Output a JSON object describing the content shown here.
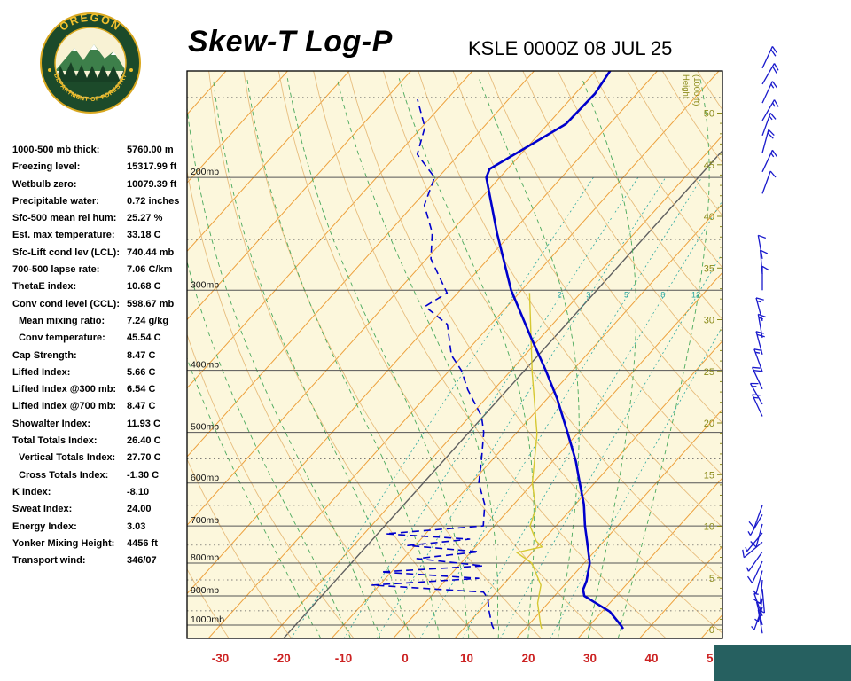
{
  "header": {
    "title": "Skew-T Log-P",
    "station_time": "KSLE 0000Z 08 JUL 25",
    "logo_top": "OREGON",
    "logo_bottom": "DEPARTMENT OF FORESTRY"
  },
  "indices": [
    {
      "label": "1000-500 mb thick:",
      "value": "5760.00 m",
      "indent": false
    },
    {
      "label": "Freezing level:",
      "value": "15317.99 ft",
      "indent": false
    },
    {
      "label": "Wetbulb zero:",
      "value": "10079.39 ft",
      "indent": false
    },
    {
      "label": "Precipitable water:",
      "value": "0.72 inches",
      "indent": false
    },
    {
      "label": "Sfc-500 mean rel hum:",
      "value": "25.27 %",
      "indent": false
    },
    {
      "label": "Est. max temperature:",
      "value": "33.18 C",
      "indent": false
    },
    {
      "label": "Sfc-Lift cond lev (LCL):",
      "value": "740.44 mb",
      "indent": false
    },
    {
      "label": "700-500 lapse rate:",
      "value": "7.06 C/km",
      "indent": false
    },
    {
      "label": "ThetaE index:",
      "value": "10.68 C",
      "indent": false
    },
    {
      "label": "Conv cond level (CCL):",
      "value": "598.67 mb",
      "indent": false
    },
    {
      "label": "Mean mixing ratio:",
      "value": "7.24 g/kg",
      "indent": true
    },
    {
      "label": "Conv temperature:",
      "value": "45.54 C",
      "indent": true
    },
    {
      "label": "Cap Strength:",
      "value": "8.47 C",
      "indent": false
    },
    {
      "label": "Lifted Index:",
      "value": "5.66 C",
      "indent": false
    },
    {
      "label": "Lifted Index @300 mb:",
      "value": "6.54 C",
      "indent": false
    },
    {
      "label": "Lifted Index @700 mb:",
      "value": "8.47 C",
      "indent": false
    },
    {
      "label": "Showalter Index:",
      "value": "11.93 C",
      "indent": false
    },
    {
      "label": "Total Totals Index:",
      "value": "26.40 C",
      "indent": false
    },
    {
      "label": "Vertical Totals Index:",
      "value": "27.70 C",
      "indent": true
    },
    {
      "label": "Cross Totals Index:",
      "value": "-1.30 C",
      "indent": true
    },
    {
      "label": "K Index:",
      "value": "-8.10",
      "indent": false
    },
    {
      "label": "Sweat Index:",
      "value": "24.00",
      "indent": false
    },
    {
      "label": "Energy Index:",
      "value": "3.03",
      "indent": false
    },
    {
      "label": "Yonker Mixing Height:",
      "value": "4456 ft",
      "indent": false
    },
    {
      "label": "Transport wind:",
      "value": "346/07",
      "indent": false
    }
  ],
  "chart_data": {
    "type": "skewt-log-p",
    "title": "Skew-T Log-P",
    "station": "KSLE 0000Z 08 JUL 25",
    "pressure_major_mb": [
      200,
      300,
      400,
      500,
      600,
      700,
      800,
      900,
      1000
    ],
    "pressure_minor_mb": [
      150,
      250,
      350,
      450,
      550,
      650,
      750,
      850,
      950
    ],
    "pressure_label_suffix": "mb",
    "temp_ticks_c": [
      -30,
      -20,
      -10,
      0,
      10,
      20,
      30,
      40,
      50
    ],
    "height_ticks_kft": [
      0,
      5,
      10,
      15,
      20,
      25,
      30,
      35,
      40,
      45,
      50
    ],
    "height_axis_label_1": "Height",
    "height_axis_label_2": "(1000 ft)",
    "isotherms_c": {
      "min": -120,
      "max": 50,
      "step": 10
    },
    "reference_isotherm_c": -17.8,
    "dry_adiabats_c": {
      "min": -30,
      "max": 200,
      "step": 10
    },
    "moist_adiabats_c": [
      -15,
      -10,
      -5,
      0,
      5,
      10,
      15,
      20,
      25,
      30,
      35
    ],
    "mixing_ratio_gkg": [
      1,
      2,
      3,
      5,
      8,
      12,
      20
    ],
    "temperature_profile_p_c": [
      [
        1013,
        35.9
      ],
      [
        1000,
        35.0
      ],
      [
        953,
        31.3
      ],
      [
        917,
        26.9
      ],
      [
        900,
        24.8
      ],
      [
        880,
        23.7
      ],
      [
        853,
        23.0
      ],
      [
        800,
        20.9
      ],
      [
        751,
        18.0
      ],
      [
        700,
        14.7
      ],
      [
        648,
        11.4
      ],
      [
        600,
        7.6
      ],
      [
        554,
        3.7
      ],
      [
        500,
        -1.8
      ],
      [
        443,
        -8.4
      ],
      [
        400,
        -14.4
      ],
      [
        356,
        -21.5
      ],
      [
        300,
        -31.7
      ],
      [
        244,
        -42.4
      ],
      [
        200,
        -52.2
      ],
      [
        194,
        -52.9
      ],
      [
        165,
        -47.1
      ],
      [
        148,
        -46.8
      ],
      [
        136,
        -47.7
      ]
    ],
    "dewpoint_profile_p_c": [
      [
        1013,
        14.9
      ],
      [
        1000,
        14.1
      ],
      [
        953,
        11.7
      ],
      [
        908,
        9.5
      ],
      [
        888,
        7.9
      ],
      [
        866,
        -11.2
      ],
      [
        845,
        5.1
      ],
      [
        826,
        -11.7
      ],
      [
        808,
        4.0
      ],
      [
        787,
        -7.8
      ],
      [
        768,
        1.2
      ],
      [
        751,
        -11.2
      ],
      [
        734,
        -2.1
      ],
      [
        720,
        -16.5
      ],
      [
        700,
        -1.8
      ],
      [
        648,
        -4.7
      ],
      [
        600,
        -8.8
      ],
      [
        554,
        -11.6
      ],
      [
        500,
        -15.4
      ],
      [
        472,
        -18.1
      ],
      [
        429,
        -24.2
      ],
      [
        400,
        -28.1
      ],
      [
        379,
        -31.9
      ],
      [
        339,
        -37.1
      ],
      [
        318,
        -43.3
      ],
      [
        303,
        -41.7
      ],
      [
        268,
        -49.3
      ],
      [
        244,
        -52.9
      ],
      [
        221,
        -58.2
      ],
      [
        200,
        -60.6
      ],
      [
        184,
        -66.8
      ],
      [
        167,
        -69.5
      ],
      [
        151,
        -74.8
      ]
    ],
    "wetbulb_profile_p_c": [
      [
        1013,
        22.7
      ],
      [
        1000,
        22.0
      ],
      [
        924,
        18.3
      ],
      [
        866,
        16.2
      ],
      [
        800,
        11.5
      ],
      [
        770,
        7.5
      ],
      [
        755,
        10.8
      ],
      [
        739,
        9.0
      ],
      [
        700,
        5.8
      ],
      [
        658,
        4.2
      ],
      [
        600,
        -0.1
      ],
      [
        503,
        -6.5
      ],
      [
        403,
        -16.3
      ],
      [
        303,
        -28.3
      ]
    ],
    "wind_barbs": [
      [
        135,
        25,
        20
      ],
      [
        143,
        30,
        20
      ],
      [
        153,
        25,
        15
      ],
      [
        163,
        30,
        15
      ],
      [
        172,
        20,
        15
      ],
      [
        183,
        15,
        20
      ],
      [
        196,
        25,
        15
      ],
      [
        212,
        20,
        10
      ],
      [
        268,
        350,
        10
      ],
      [
        283,
        355,
        10
      ],
      [
        300,
        0,
        10
      ],
      [
        335,
        345,
        15
      ],
      [
        356,
        350,
        15
      ],
      [
        378,
        345,
        20
      ],
      [
        402,
        340,
        15
      ],
      [
        428,
        335,
        20
      ],
      [
        452,
        330,
        15
      ],
      [
        472,
        335,
        15
      ],
      [
        650,
        200,
        10
      ],
      [
        672,
        210,
        5
      ],
      [
        695,
        195,
        10
      ],
      [
        718,
        220,
        5
      ],
      [
        742,
        230,
        10
      ],
      [
        768,
        215,
        5
      ],
      [
        795,
        205,
        10
      ],
      [
        822,
        195,
        5
      ],
      [
        850,
        185,
        10
      ],
      [
        878,
        175,
        5
      ],
      [
        908,
        190,
        5
      ],
      [
        938,
        200,
        5
      ],
      [
        968,
        340,
        5
      ],
      [
        1000,
        346,
        7
      ],
      [
        1030,
        350,
        5
      ]
    ],
    "colors": {
      "plot_bg": "#fcf7dc",
      "isotherm": "#eda13d",
      "dry_adiabat": "#e7bd7e",
      "moist_adiabat": "#4aa95c",
      "mixing_ratio": "#2aa7a0",
      "isobar": "#555555",
      "reference_line": "#606060",
      "temperature_line": "#0000cc",
      "dewpoint_line": "#0000cc",
      "wetbulb_line": "#d6c832",
      "wind_barb": "#1a1acc",
      "temp_axis_label": "#cc2222",
      "height_axis_label": "#8b8b1a",
      "pressure_label": "#111111",
      "frame": "#000000",
      "corner_box": "#266060"
    }
  }
}
